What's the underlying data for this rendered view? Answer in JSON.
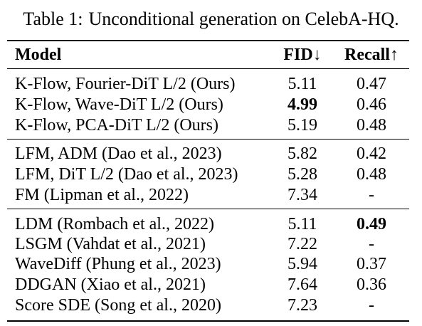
{
  "caption": {
    "label": "Table 1:",
    "text": "Unconditional generation on CelebA-HQ."
  },
  "header": {
    "model": "Model",
    "fid": "FID↓",
    "recall": "Recall↑"
  },
  "groups": [
    {
      "rows": [
        {
          "model": "K-Flow, Fourier-DiT L/2 (Ours)",
          "fid": "5.11",
          "recall": "0.47",
          "fid_bold": false,
          "recall_bold": false
        },
        {
          "model": "K-Flow, Wave-DiT L/2 (Ours)",
          "fid": "4.99",
          "recall": "0.46",
          "fid_bold": true,
          "recall_bold": false
        },
        {
          "model": "K-Flow, PCA-DiT L/2 (Ours)",
          "fid": "5.19",
          "recall": "0.48",
          "fid_bold": false,
          "recall_bold": false
        }
      ]
    },
    {
      "rows": [
        {
          "model": "LFM, ADM (Dao et al., 2023)",
          "fid": "5.82",
          "recall": "0.42",
          "fid_bold": false,
          "recall_bold": false
        },
        {
          "model": "LFM, DiT L/2 (Dao et al., 2023)",
          "fid": "5.28",
          "recall": "0.48",
          "fid_bold": false,
          "recall_bold": false
        },
        {
          "model": "FM (Lipman et al., 2022)",
          "fid": "7.34",
          "recall": "-",
          "fid_bold": false,
          "recall_bold": false
        }
      ]
    },
    {
      "rows": [
        {
          "model": "LDM (Rombach et al., 2022)",
          "fid": "5.11",
          "recall": "0.49",
          "fid_bold": false,
          "recall_bold": true
        },
        {
          "model": "LSGM (Vahdat et al., 2021)",
          "fid": "7.22",
          "recall": "-",
          "fid_bold": false,
          "recall_bold": false
        },
        {
          "model": "WaveDiff (Phung et al., 2023)",
          "fid": "5.94",
          "recall": "0.37",
          "fid_bold": false,
          "recall_bold": false
        },
        {
          "model": "DDGAN (Xiao et al., 2021)",
          "fid": "7.64",
          "recall": "0.36",
          "fid_bold": false,
          "recall_bold": false
        },
        {
          "model": "Score SDE (Song et al., 2020)",
          "fid": "7.23",
          "recall": "-",
          "fid_bold": false,
          "recall_bold": false
        }
      ]
    }
  ]
}
